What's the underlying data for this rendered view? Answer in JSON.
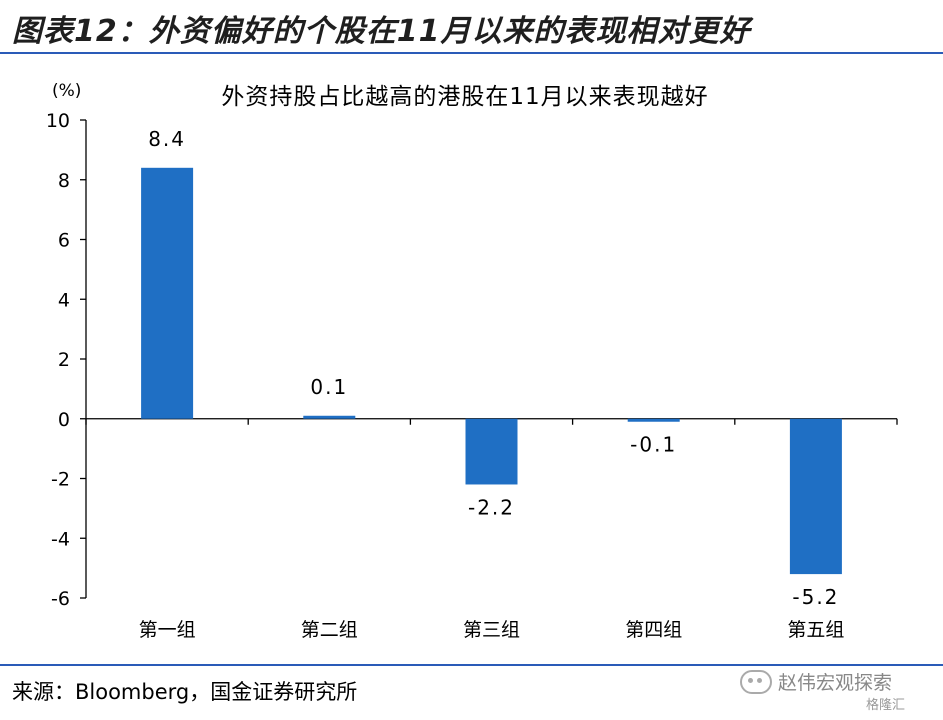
{
  "figure": {
    "title": "图表12：外资偏好的个股在11月以来的表现相对更好",
    "source": "来源：Bloomberg，国金证券研究所",
    "watermark": "赵伟宏观探索",
    "watermark_sub": "格隆汇",
    "accent_color": "#2a5bb8",
    "icon": "wechat-icon"
  },
  "chart_data": {
    "type": "bar",
    "title": "外资持股占比越高的港股在11月以来表现越好",
    "unit": "(%)",
    "categories": [
      "第一组",
      "第二组",
      "第三组",
      "第四组",
      "第五组"
    ],
    "values": [
      8.4,
      0.1,
      -2.2,
      -0.1,
      -5.2
    ],
    "value_labels": [
      "8.4",
      "0.1",
      "-2.2",
      "-0.1",
      "-5.2"
    ],
    "ylim": [
      -6,
      10
    ],
    "yticks": [
      -6,
      -4,
      -2,
      0,
      2,
      4,
      6,
      8,
      10
    ],
    "bar_color": "#1f6fc4",
    "grid": false,
    "legend": "none"
  }
}
